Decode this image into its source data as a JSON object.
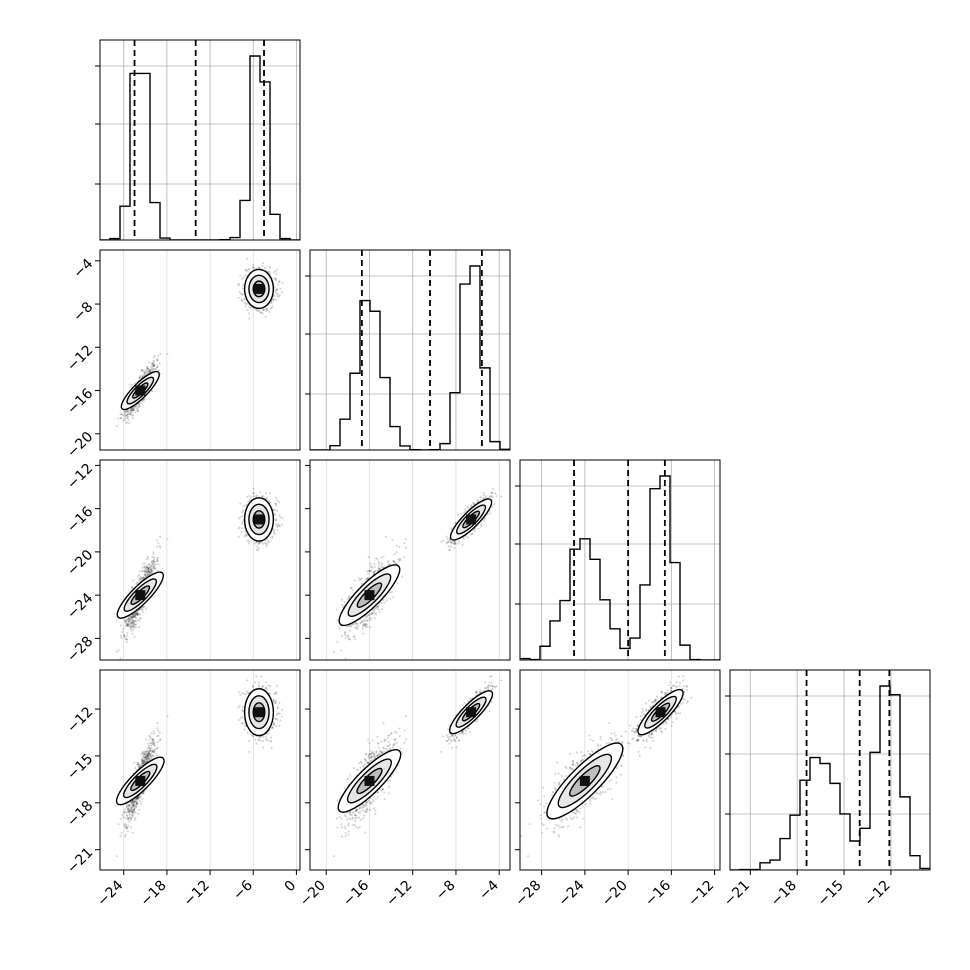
{
  "chart_data": {
    "type": "corner",
    "grid": true,
    "n_params": 4,
    "dists": [
      {
        "xlim": [
          -27.3,
          0.5
        ],
        "ticks": [
          -24,
          -18,
          -12,
          -6,
          0
        ],
        "tick_labels": [
          "−24",
          "−18",
          "−12",
          "−6",
          "0"
        ],
        "quantiles": [
          -22.5,
          -14,
          -4.5
        ],
        "clusters": [
          {
            "mean": -21.7,
            "sd": 1.0,
            "w": 0.5
          },
          {
            "mean": -5.2,
            "sd": 1.0,
            "w": 0.5
          }
        ]
      },
      {
        "xlim": [
          -21.5,
          -3.0
        ],
        "ticks": [
          -20,
          -16,
          -12,
          -8,
          -4
        ],
        "tick_labels": [
          "−20",
          "−16",
          "−12",
          "−8",
          "−4"
        ],
        "quantiles": [
          -16.7,
          -10.4,
          -5.6
        ],
        "clusters": [
          {
            "mean": -16.0,
            "sd": 1.15,
            "w": 0.5
          },
          {
            "mean": -6.6,
            "sd": 0.9,
            "w": 0.5
          }
        ]
      },
      {
        "xlim": [
          -30.0,
          -11.5
        ],
        "ticks": [
          -28,
          -24,
          -20,
          -16,
          -12
        ],
        "tick_labels": [
          "−28",
          "−24",
          "−20",
          "−16",
          "−12"
        ],
        "quantiles": [
          -25.0,
          -20.0,
          -16.6
        ],
        "clusters": [
          {
            "mean": -24.0,
            "sd": 1.7,
            "w": 0.5
          },
          {
            "mean": -17.0,
            "sd": 1.0,
            "w": 0.5
          }
        ]
      },
      {
        "xlim": [
          -22.3,
          -9.5
        ],
        "ticks": [
          -21,
          -18,
          -15,
          -12
        ],
        "tick_labels": [
          "−21",
          "−18",
          "−15",
          "−12"
        ],
        "quantiles": [
          -17.4,
          -14.0,
          -12.1
        ],
        "clusters": [
          {
            "mean": -16.6,
            "sd": 1.25,
            "w": 0.5
          },
          {
            "mean": -12.2,
            "sd": 0.75,
            "w": 0.5
          }
        ]
      }
    ],
    "pair_rho": [
      {
        "i": 1,
        "j": 0,
        "rho": [
          0.85,
          0.0
        ]
      },
      {
        "i": 2,
        "j": 0,
        "rho": [
          0.85,
          0.0
        ]
      },
      {
        "i": 2,
        "j": 1,
        "rho": [
          0.85,
          0.85
        ]
      },
      {
        "i": 3,
        "j": 0,
        "rho": [
          0.85,
          0.0
        ]
      },
      {
        "i": 3,
        "j": 1,
        "rho": [
          0.85,
          0.85
        ]
      },
      {
        "i": 3,
        "j": 2,
        "rho": [
          0.85,
          0.85
        ]
      }
    ]
  }
}
